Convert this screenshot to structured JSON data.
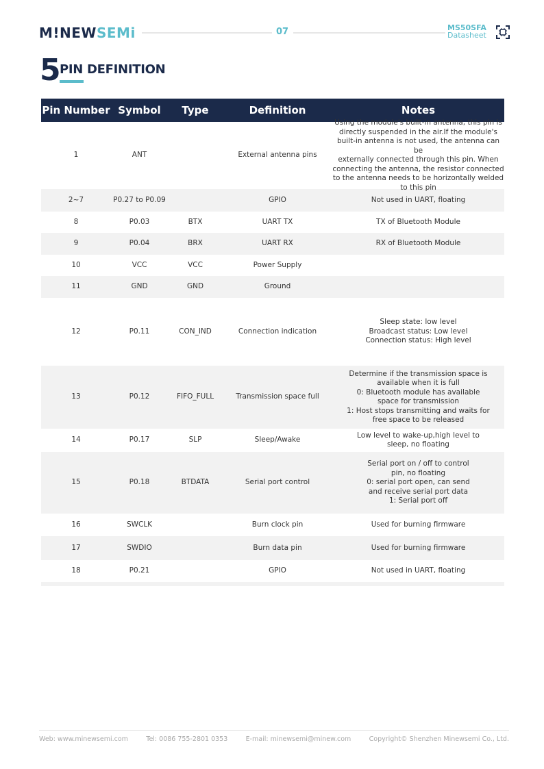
{
  "header": {
    "logo_part1": "M!NEW",
    "logo_part2": "SEMi",
    "page_number": "07",
    "product": "MS50SFA",
    "doc_type": "Datasheet",
    "brand_color": "#1b2a4a",
    "accent_color": "#5bbccb"
  },
  "section": {
    "number": "5",
    "title": "PIN DEFINITION"
  },
  "table": {
    "columns": [
      "Pin Number",
      "Symbol",
      "Type",
      "Definition",
      "Notes"
    ],
    "rows": [
      {
        "pin": "1",
        "symbol": "ANT",
        "type": "",
        "definition": "External antenna pins",
        "notes": "Using the module's built-in antenna, this pin is\ndirectly suspended in the air.If the module's\nbuilt-in antenna is not used, the antenna can be\nexternally connected through this pin. When\nconnecting the antenna, the resistor connected\nto the antenna needs to be horizontally welded\nto this pin"
      },
      {
        "pin": "2~7",
        "symbol": "P0.27 to P0.09",
        "type": "",
        "definition": "GPIO",
        "notes": "Not used in UART, floating"
      },
      {
        "pin": "8",
        "symbol": "P0.03",
        "type": "BTX",
        "definition": "UART TX",
        "notes": "TX of Bluetooth Module"
      },
      {
        "pin": "9",
        "symbol": "P0.04",
        "type": "BRX",
        "definition": "UART RX",
        "notes": "RX of Bluetooth Module"
      },
      {
        "pin": "10",
        "symbol": "VCC",
        "type": "VCC",
        "definition": "Power Supply",
        "notes": ""
      },
      {
        "pin": "11",
        "symbol": "GND",
        "type": "GND",
        "definition": "Ground",
        "notes": ""
      },
      {
        "pin": "12",
        "symbol": "P0.11",
        "type": "CON_IND",
        "definition": "Connection indication",
        "notes": "Sleep state: low level\nBroadcast status: Low level\nConnection status: High level"
      },
      {
        "pin": "13",
        "symbol": "P0.12",
        "type": "FIFO_FULL",
        "definition": "Transmission space full",
        "notes": "Determine if the transmission space is\navailable when it is full\n0: Bluetooth module has available\nspace for transmission\n1: Host stops transmitting and waits for\nfree space to be released"
      },
      {
        "pin": "14",
        "symbol": "P0.17",
        "type": "SLP",
        "definition": "Sleep/Awake",
        "notes": "Low level to wake-up,high level to\nsleep, no floating"
      },
      {
        "pin": "15",
        "symbol": "P0.18",
        "type": "BTDATA",
        "definition": "Serial port control",
        "notes": "Serial port on / off to control\npin, no floating\n0: serial port open, can send\nand receive serial port data\n1: Serial port off"
      },
      {
        "pin": "16",
        "symbol": "SWCLK",
        "type": "",
        "definition": "Burn clock pin",
        "notes": "Used for burning firmware"
      },
      {
        "pin": "17",
        "symbol": "SWDIO",
        "type": "",
        "definition": "Burn data pin",
        "notes": "Used for burning firmware"
      },
      {
        "pin": "18",
        "symbol": "P0.21",
        "type": "",
        "definition": "GPIO",
        "notes": "Not used in UART, floating"
      }
    ]
  },
  "footer": {
    "web": "Web:  www.minewsemi.com",
    "tel": "Tel:  0086 755-2801 0353",
    "email": "E-mail:  minewsemi@minew.com",
    "copyright": "Copyright© Shenzhen Minewsemi Co., Ltd."
  }
}
